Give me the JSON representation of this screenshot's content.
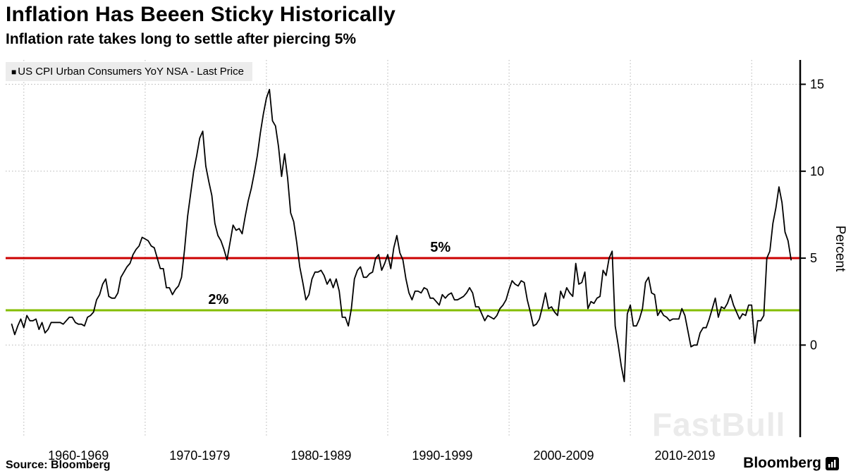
{
  "header": {
    "title": "Inflation Has Beeen Sticky Historically",
    "subtitle": "Inflation rate takes long to settle after piercing 5%"
  },
  "legend": {
    "marker": "■",
    "label": "US CPI Urban Consumers YoY NSA - Last Price"
  },
  "watermark": "FastBull",
  "footer": {
    "source": "Source: Bloomberg",
    "brand": "Bloomberg"
  },
  "chart_data": {
    "type": "line",
    "title": "Inflation Has Beeen Sticky Historically",
    "subtitle": "Inflation rate takes long to settle after piercing 5%",
    "ylabel": "Percent",
    "grid": "dotted",
    "legend_position": "top-left",
    "x_axis": {
      "domain": [
        1958.5,
        2024
      ],
      "gridline_years": [
        1960,
        1970,
        1980,
        1990,
        2000,
        2010,
        2020
      ],
      "tick_labels": [
        "1960-1969",
        "1970-1979",
        "1980-1989",
        "1990-1999",
        "2000-2009",
        "2010-2019"
      ],
      "label_centers": [
        1964.5,
        1974.5,
        1984.5,
        1994.5,
        2004.5,
        2014.5
      ]
    },
    "y_axis": {
      "domain": [
        -5.3,
        16.4
      ],
      "ticks": [
        0,
        5,
        10,
        15
      ]
    },
    "reference_lines": [
      {
        "value": 5,
        "label": "5%",
        "color": "#cc0000",
        "label_x": 1993.5
      },
      {
        "value": 2,
        "label": "2%",
        "color": "#84bd00",
        "label_x": 1975.2
      }
    ],
    "series": [
      {
        "name": "US CPI Urban Consumers YoY NSA - Last Price",
        "color": "#000000",
        "start_year": 1959,
        "step_years": 0.25,
        "values": [
          1.2,
          0.6,
          1.1,
          1.5,
          1.0,
          1.7,
          1.4,
          1.4,
          1.5,
          0.9,
          1.3,
          0.7,
          0.9,
          1.3,
          1.3,
          1.3,
          1.3,
          1.2,
          1.4,
          1.6,
          1.6,
          1.3,
          1.2,
          1.2,
          1.1,
          1.6,
          1.7,
          1.9,
          2.6,
          2.9,
          3.5,
          3.8,
          2.8,
          2.7,
          2.7,
          3.0,
          3.9,
          4.2,
          4.5,
          4.7,
          5.2,
          5.5,
          5.7,
          6.2,
          6.1,
          6.0,
          5.7,
          5.6,
          5.0,
          4.4,
          4.4,
          3.3,
          3.3,
          2.9,
          3.2,
          3.4,
          3.9,
          5.5,
          7.4,
          8.7,
          10.0,
          10.9,
          11.9,
          12.3,
          10.3,
          9.4,
          8.6,
          7.0,
          6.3,
          6.0,
          5.5,
          4.9,
          5.9,
          6.9,
          6.6,
          6.7,
          6.4,
          7.4,
          8.3,
          9.0,
          9.9,
          10.9,
          12.2,
          13.3,
          14.2,
          14.7,
          12.9,
          12.6,
          11.4,
          9.7,
          11.0,
          9.6,
          7.6,
          7.1,
          5.9,
          4.5,
          3.6,
          2.6,
          2.9,
          3.8,
          4.2,
          4.2,
          4.3,
          4.0,
          3.5,
          3.8,
          3.3,
          3.8,
          3.1,
          1.6,
          1.6,
          1.1,
          2.1,
          3.8,
          4.3,
          4.5,
          3.9,
          3.9,
          4.1,
          4.2,
          5.0,
          5.2,
          4.3,
          4.7,
          5.2,
          4.4,
          5.6,
          6.3,
          5.3,
          4.9,
          3.8,
          3.0,
          2.6,
          3.1,
          3.1,
          3.0,
          3.3,
          3.2,
          2.7,
          2.7,
          2.5,
          2.3,
          2.9,
          2.7,
          2.9,
          3.0,
          2.6,
          2.6,
          2.7,
          2.8,
          3.0,
          3.3,
          3.0,
          2.2,
          2.2,
          1.8,
          1.4,
          1.7,
          1.6,
          1.5,
          1.7,
          2.1,
          2.3,
          2.6,
          3.2,
          3.7,
          3.5,
          3.4,
          3.7,
          3.6,
          2.6,
          1.9,
          1.1,
          1.2,
          1.5,
          2.2,
          3.0,
          2.1,
          2.2,
          1.9,
          1.7,
          3.1,
          2.7,
          3.3,
          3.0,
          2.8,
          4.7,
          3.5,
          3.6,
          4.2,
          2.1,
          2.5,
          2.4,
          2.7,
          2.8,
          4.3,
          4.0,
          5.0,
          5.4,
          1.1,
          0.0,
          -1.2,
          -2.1,
          1.8,
          2.3,
          1.1,
          1.1,
          1.5,
          2.1,
          3.6,
          3.9,
          3.0,
          2.9,
          1.7,
          2.0,
          1.7,
          1.6,
          1.4,
          1.5,
          1.5,
          1.5,
          2.1,
          1.7,
          0.8,
          -0.1,
          0.0,
          0.0,
          0.7,
          1.0,
          1.0,
          1.5,
          2.1,
          2.7,
          1.6,
          2.2,
          2.1,
          2.4,
          2.9,
          2.3,
          1.9,
          1.5,
          1.8,
          1.7,
          2.3,
          2.3,
          0.1,
          1.4,
          1.4,
          1.7,
          5.0,
          5.4,
          7.0,
          7.9,
          9.1,
          8.2,
          6.5,
          6.0,
          4.9
        ]
      }
    ]
  }
}
